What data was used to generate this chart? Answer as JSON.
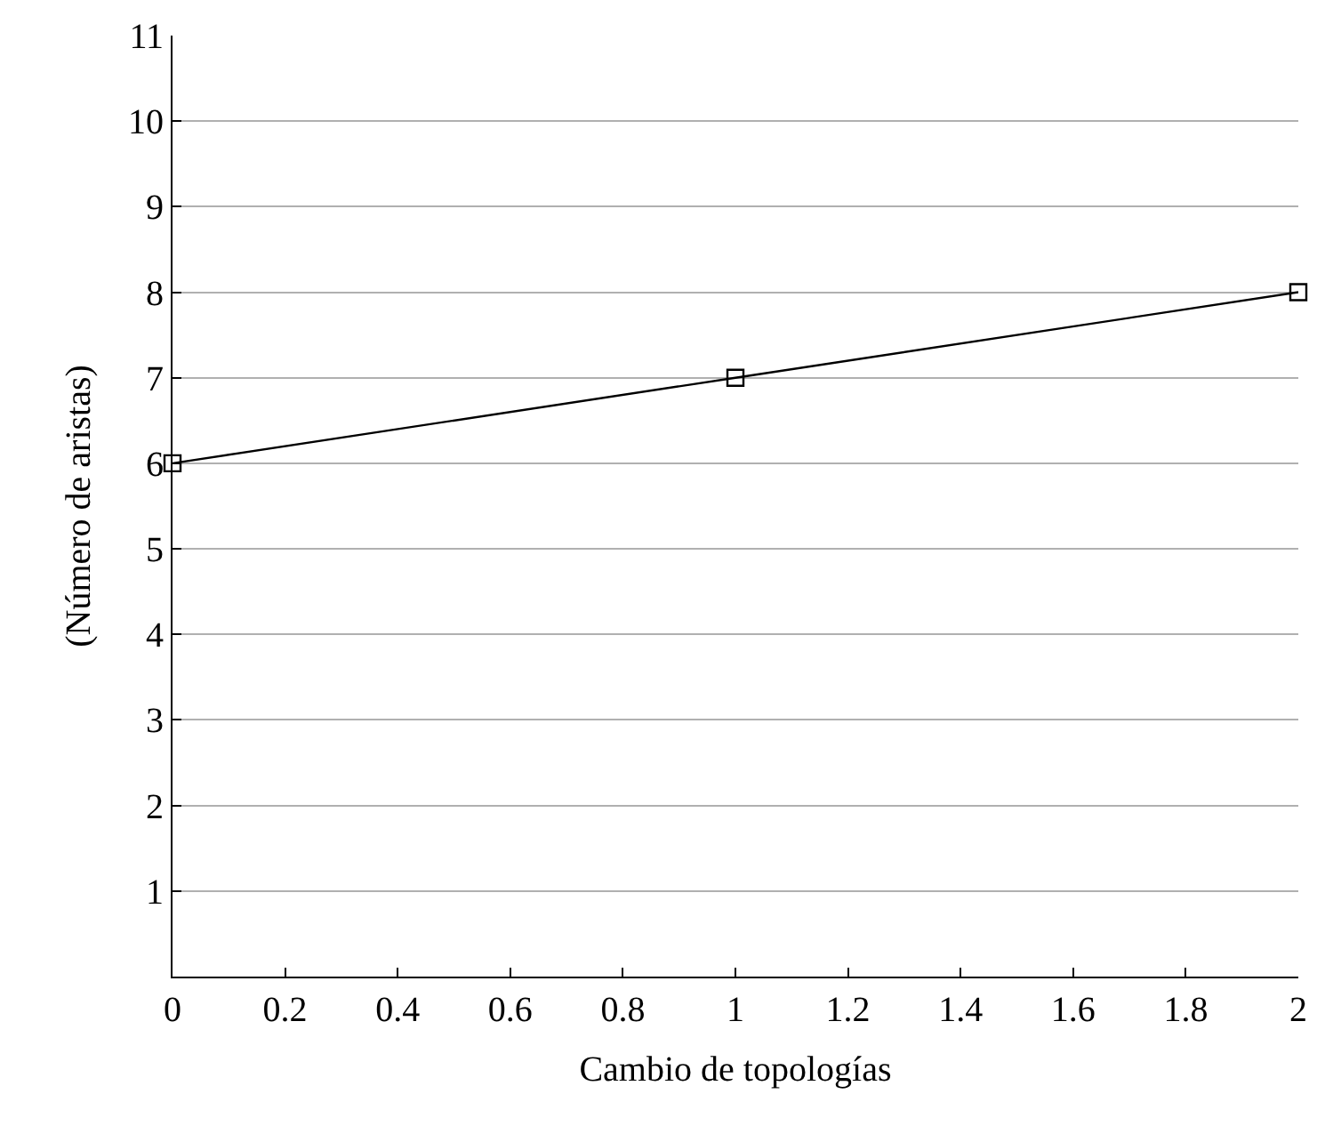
{
  "chart_data": {
    "type": "line",
    "xlabel": "Cambio de topologías",
    "ylabel": "(Número de aristas)",
    "x": [
      0,
      1,
      2
    ],
    "series": [
      {
        "color": "#000000",
        "values": [
          6,
          7,
          8
        ]
      }
    ],
    "xlim": [
      0,
      2
    ],
    "xticks": [
      0,
      0.2,
      0.4,
      0.6,
      0.8,
      1,
      1.2,
      1.4,
      1.6,
      1.8,
      2
    ],
    "ylim": [
      0,
      11
    ],
    "yticks": [
      1,
      2,
      3,
      4,
      5,
      6,
      7,
      8,
      9,
      10,
      11
    ],
    "grid": "y",
    "marker": "square",
    "line_style": "solid"
  }
}
